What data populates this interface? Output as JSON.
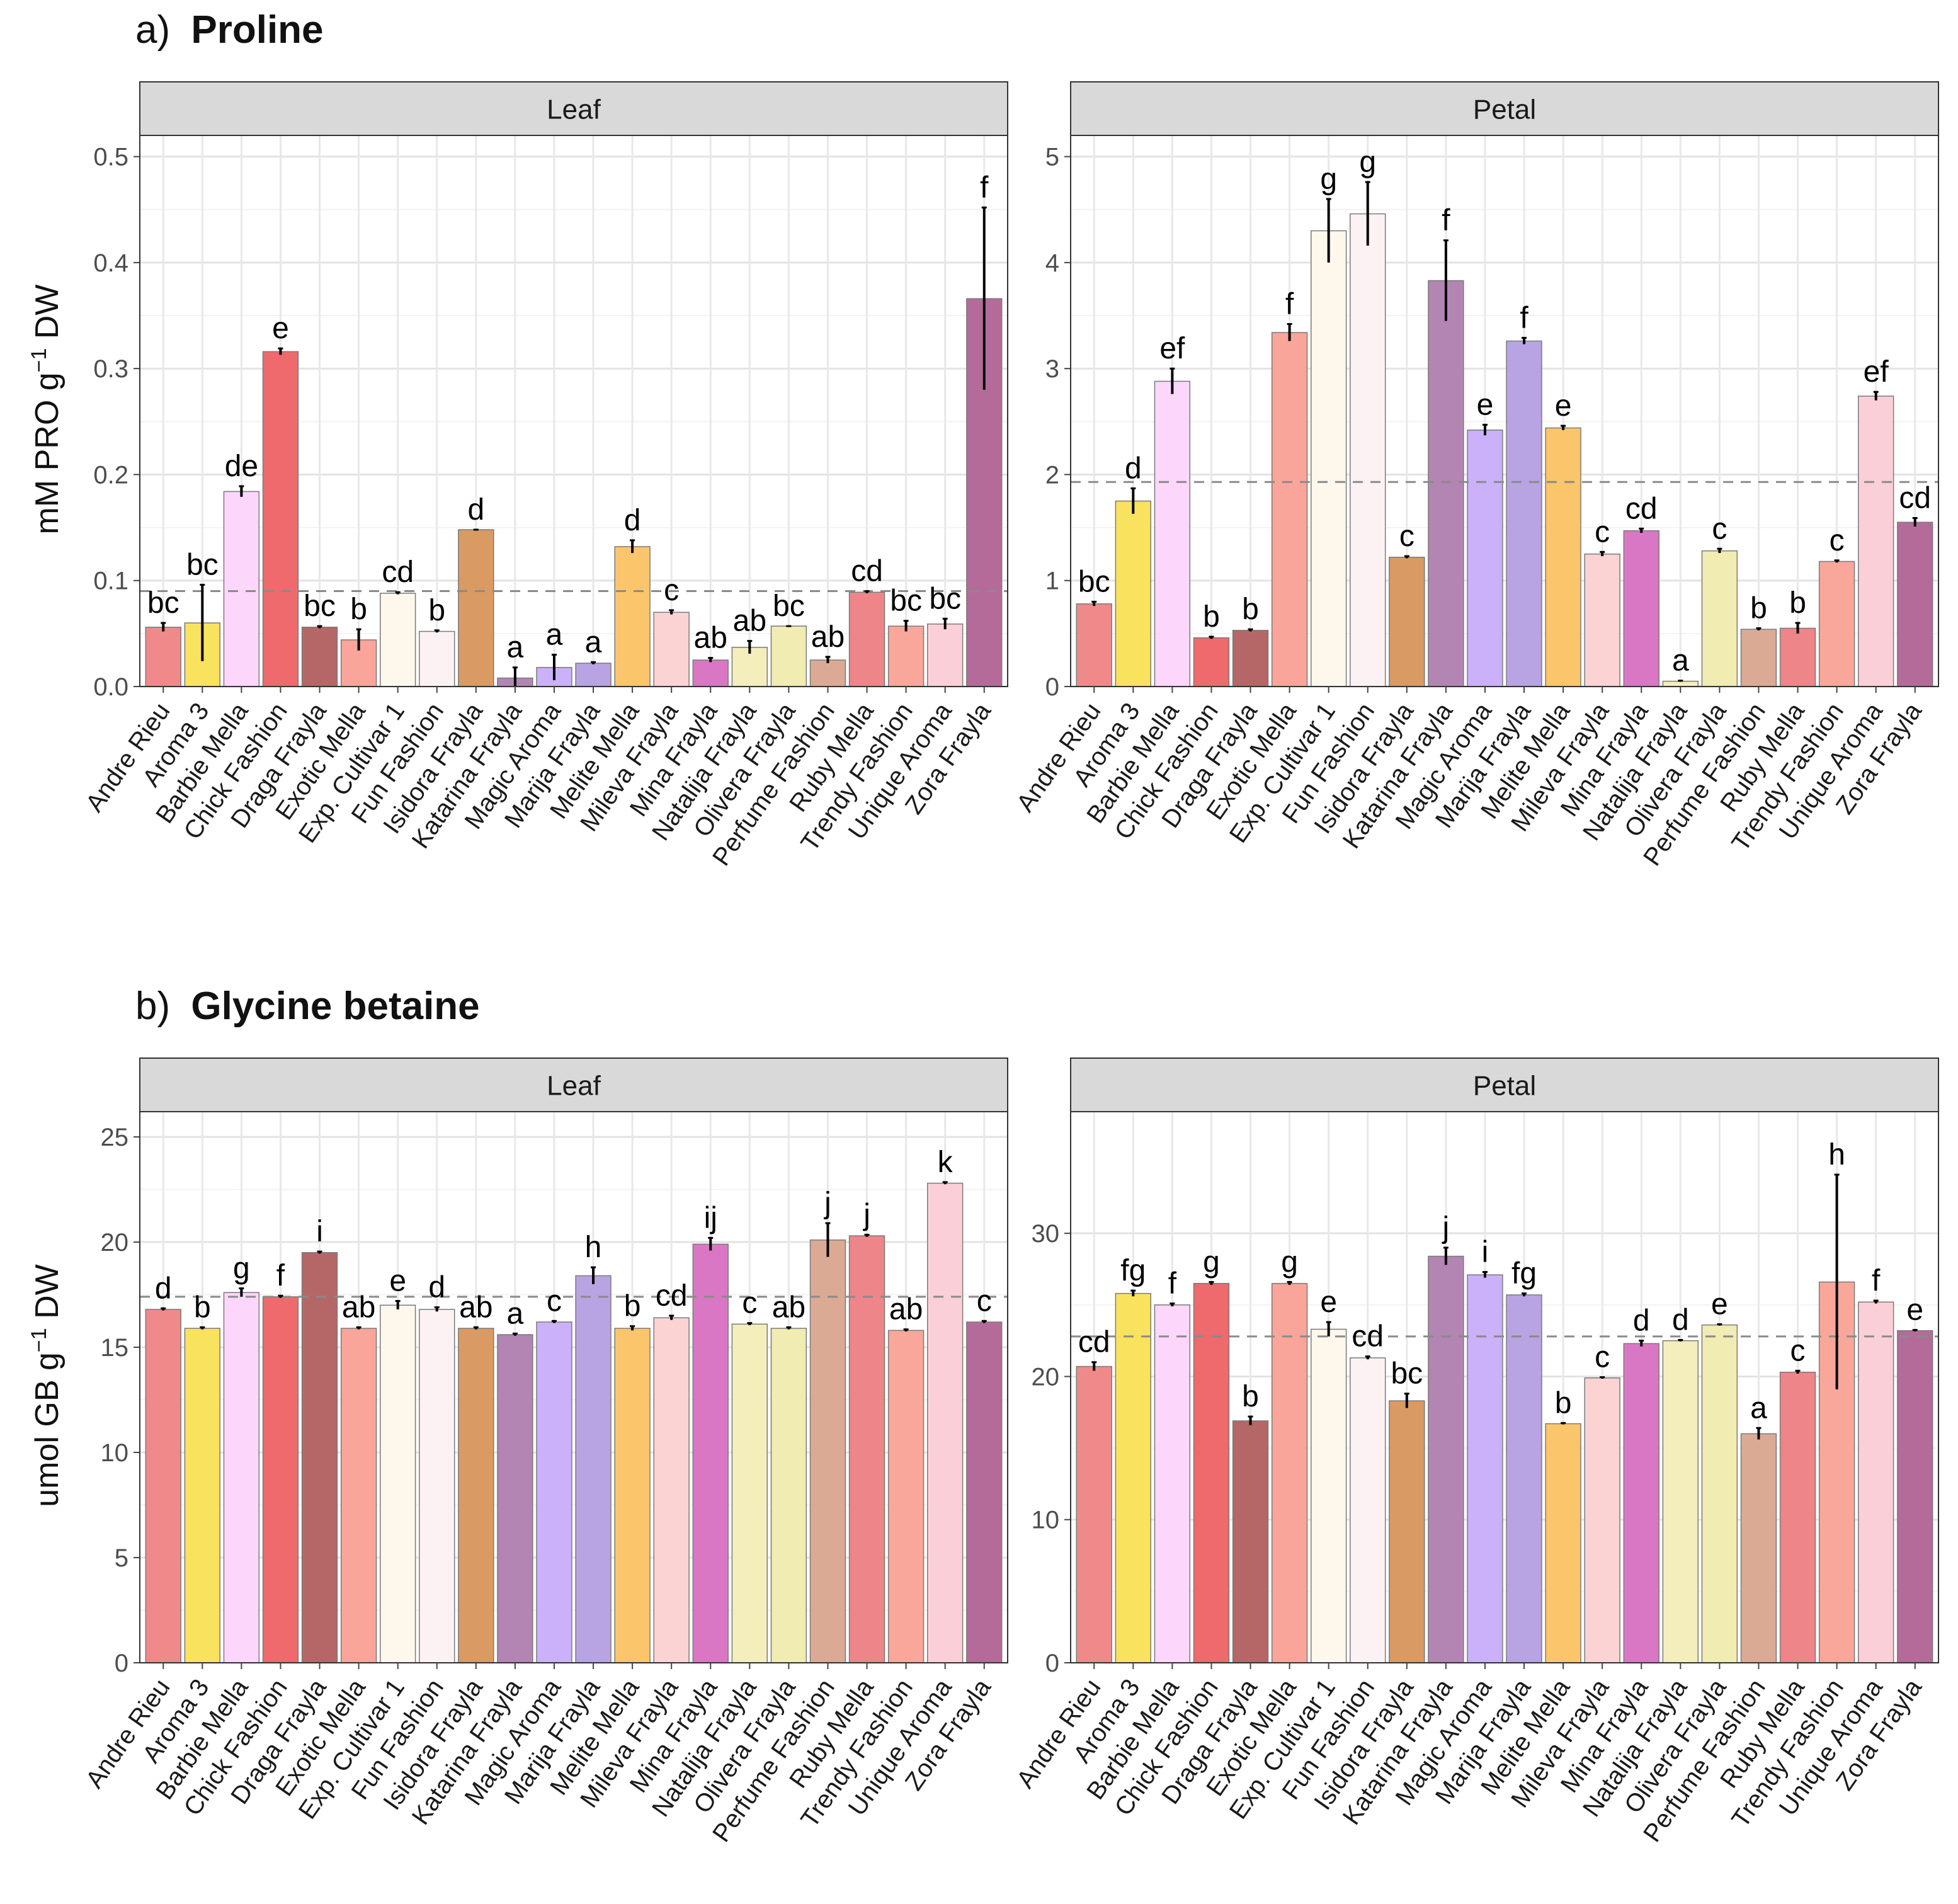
{
  "sections": [
    {
      "prefix": "a)",
      "title": "Proline"
    },
    {
      "prefix": "b)",
      "title": "Glycine betaine"
    }
  ],
  "y_label_proline": {
    "main": "mM PRO g",
    "sup": "−1",
    "tail": " DW"
  },
  "y_label_gb": {
    "main": "umol GB g",
    "sup": "−1",
    "tail": " DW"
  },
  "cultivar_colors": [
    "#f08a8a",
    "#f9e25e",
    "#fcd6fb",
    "#ee6a6d",
    "#b56768",
    "#f9a59a",
    "#fdf7ec",
    "#fdf2f3",
    "#d99a63",
    "#b285b2",
    "#cab1f9",
    "#b8a4e2",
    "#fbc56c",
    "#fbd3d3",
    "#d977c5",
    "#f3eebc",
    "#f0ecb2",
    "#dbaa95",
    "#ee8589",
    "#f9a79a",
    "#fbcfd7",
    "#b56b9a"
  ],
  "chart_data": [
    {
      "type": "bar",
      "panel": "Leaf",
      "section": "Proline",
      "categories": [
        "Andre Rieu",
        "Aroma 3",
        "Barbie Mella",
        "Chick Fashion",
        "Draga Frayla",
        "Exotic Mella",
        "Exp. Cultivar 1",
        "Fun Fashion",
        "Isidora Frayla",
        "Katarina Frayla",
        "Magic Aroma",
        "Marija Frayla",
        "Melite Mella",
        "Mileva Frayla",
        "Mina Frayla",
        "Natalija Frayla",
        "Olivera Frayla",
        "Perfume Fashion",
        "Ruby Mella",
        "Trendy Fashion",
        "Unique Aroma",
        "Zora Frayla"
      ],
      "values": [
        0.056,
        0.06,
        0.184,
        0.316,
        0.056,
        0.044,
        0.088,
        0.052,
        0.148,
        0.008,
        0.018,
        0.022,
        0.132,
        0.07,
        0.025,
        0.037,
        0.057,
        0.025,
        0.089,
        0.057,
        0.059,
        0.366
      ],
      "errors": [
        0.004,
        0.036,
        0.005,
        0.003,
        0.001,
        0.01,
        0.001,
        0.001,
        0.0,
        0.01,
        0.012,
        0.001,
        0.006,
        0.002,
        0.002,
        0.006,
        0.0,
        0.003,
        0.001,
        0.005,
        0.005,
        0.086
      ],
      "letters": [
        "bc",
        "bc",
        "de",
        "e",
        "bc",
        "b",
        "cd",
        "b",
        "d",
        "a",
        "a",
        "a",
        "d",
        "c",
        "ab",
        "ab",
        "bc",
        "ab",
        "cd",
        "bc",
        "bc",
        "f"
      ],
      "reference_line": 0.09,
      "ylim": [
        0,
        0.52
      ],
      "yticks": [
        0.0,
        0.1,
        0.2,
        0.3,
        0.4,
        0.5
      ],
      "ytick_labels": [
        "0.0",
        "0.1",
        "0.2",
        "0.3",
        "0.4",
        "0.5"
      ]
    },
    {
      "type": "bar",
      "panel": "Petal",
      "section": "Proline",
      "categories": [
        "Andre Rieu",
        "Aroma 3",
        "Barbie Mella",
        "Chick Fashion",
        "Draga Frayla",
        "Exotic Mella",
        "Exp. Cultivar 1",
        "Fun Fashion",
        "Isidora Frayla",
        "Katarina Frayla",
        "Magic Aroma",
        "Marija Frayla",
        "Melite Mella",
        "Mileva Frayla",
        "Mina Frayla",
        "Natalija Frayla",
        "Olivera Frayla",
        "Perfume Fashion",
        "Ruby Mella",
        "Trendy Fashion",
        "Unique Aroma",
        "Zora Frayla"
      ],
      "values": [
        0.78,
        1.75,
        2.88,
        0.46,
        0.53,
        3.34,
        4.3,
        4.46,
        1.22,
        3.83,
        2.42,
        3.26,
        2.44,
        1.25,
        1.47,
        0.05,
        1.28,
        0.54,
        0.55,
        1.18,
        2.74,
        1.55
      ],
      "errors": [
        0.02,
        0.12,
        0.12,
        0.01,
        0.01,
        0.08,
        0.3,
        0.3,
        0.01,
        0.38,
        0.05,
        0.03,
        0.02,
        0.02,
        0.02,
        0.005,
        0.02,
        0.01,
        0.05,
        0.01,
        0.04,
        0.04
      ],
      "letters": [
        "bc",
        "d",
        "ef",
        "b",
        "b",
        "f",
        "g",
        "g",
        "c",
        "f",
        "e",
        "f",
        "e",
        "c",
        "cd",
        "a",
        "c",
        "b",
        "b",
        "c",
        "ef",
        "cd"
      ],
      "reference_line": 1.93,
      "ylim": [
        0,
        5.2
      ],
      "yticks": [
        0,
        1,
        2,
        3,
        4,
        5
      ],
      "ytick_labels": [
        "0",
        "1",
        "2",
        "3",
        "4",
        "5"
      ]
    },
    {
      "type": "bar",
      "panel": "Leaf",
      "section": "Glycine betaine",
      "categories": [
        "Andre Rieu",
        "Aroma 3",
        "Barbie Mella",
        "Chick Fashion",
        "Draga Frayla",
        "Exotic Mella",
        "Exp. Cultivar 1",
        "Fun Fashion",
        "Isidora Frayla",
        "Katarina Frayla",
        "Magic Aroma",
        "Marija Frayla",
        "Melite Mella",
        "Mileva Frayla",
        "Mina Frayla",
        "Natalija Frayla",
        "Olivera Frayla",
        "Perfume Fashion",
        "Ruby Mella",
        "Trendy Fashion",
        "Unique Aroma",
        "Zora Frayla"
      ],
      "values": [
        16.8,
        15.9,
        17.6,
        17.4,
        19.5,
        15.9,
        17.0,
        16.8,
        15.9,
        15.6,
        16.2,
        18.4,
        15.9,
        16.4,
        19.9,
        16.1,
        15.9,
        20.1,
        20.3,
        15.8,
        22.8,
        16.2
      ],
      "errors": [
        0.05,
        0.05,
        0.2,
        0.05,
        0.05,
        0.05,
        0.2,
        0.1,
        0.05,
        0.05,
        0.05,
        0.4,
        0.1,
        0.1,
        0.3,
        0.05,
        0.05,
        0.8,
        0.05,
        0.05,
        0.05,
        0.05
      ],
      "letters": [
        "d",
        "b",
        "g",
        "f",
        "i",
        "ab",
        "e",
        "d",
        "ab",
        "a",
        "c",
        "h",
        "b",
        "cd",
        "ij",
        "c",
        "ab",
        "j",
        "j",
        "ab",
        "k",
        "c"
      ],
      "reference_line": 17.4,
      "ylim": [
        0,
        26.2
      ],
      "yticks": [
        0,
        5,
        10,
        15,
        20,
        25
      ],
      "ytick_labels": [
        "0",
        "5",
        "10",
        "15",
        "20",
        "25"
      ]
    },
    {
      "type": "bar",
      "panel": "Petal",
      "section": "Glycine betaine",
      "categories": [
        "Andre Rieu",
        "Aroma 3",
        "Barbie Mella",
        "Chick Fashion",
        "Draga Frayla",
        "Exotic Mella",
        "Exp. Cultivar 1",
        "Fun Fashion",
        "Isidora Frayla",
        "Katarina Frayla",
        "Magic Aroma",
        "Marija Frayla",
        "Melite Mella",
        "Mileva Frayla",
        "Mina Frayla",
        "Natalija Frayla",
        "Olivera Frayla",
        "Perfume Fashion",
        "Ruby Mella",
        "Trendy Fashion",
        "Unique Aroma",
        "Zora Frayla"
      ],
      "values": [
        20.7,
        25.8,
        25.0,
        26.5,
        16.9,
        26.5,
        23.3,
        21.3,
        18.3,
        28.4,
        27.1,
        25.7,
        16.7,
        19.9,
        22.3,
        22.5,
        23.6,
        16.0,
        20.3,
        26.6,
        25.2,
        23.2
      ],
      "errors": [
        0.3,
        0.2,
        0.1,
        0.1,
        0.3,
        0.1,
        0.5,
        0.1,
        0.5,
        0.6,
        0.2,
        0.1,
        0.05,
        0.05,
        0.2,
        0.05,
        0.05,
        0.4,
        0.1,
        7.5,
        0.1,
        0.05
      ],
      "letters": [
        "cd",
        "fg",
        "f",
        "g",
        "b",
        "g",
        "e",
        "cd",
        "bc",
        "j",
        "i",
        "fg",
        "b",
        "c",
        "d",
        "d",
        "e",
        "a",
        "c",
        "h",
        "f",
        "e"
      ],
      "reference_line": 22.8,
      "ylim": [
        0,
        38.5
      ],
      "yticks": [
        0,
        10,
        20,
        30
      ],
      "ytick_labels": [
        "0",
        "10",
        "20",
        "30"
      ]
    }
  ]
}
